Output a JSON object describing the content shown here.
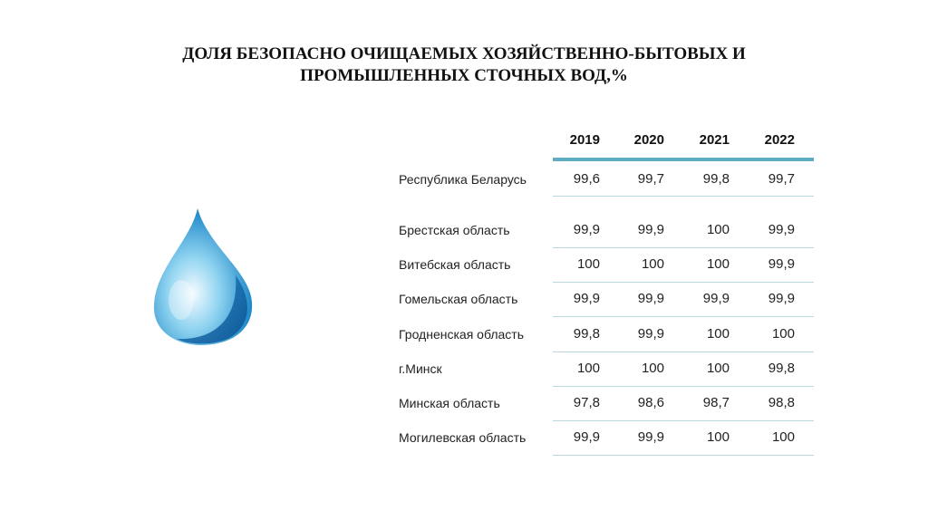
{
  "title": {
    "line1": "ДОЛЯ БЕЗОПАСНО ОЧИЩАЕМЫХ ХОЗЯЙСТВЕННО-БЫТОВЫХ И",
    "line2": "ПРОМЫШЛЕННЫХ СТОЧНЫХ ВОД,%"
  },
  "image": "water-drop",
  "table": {
    "columns": [
      "2019",
      "2020",
      "2021",
      "2022"
    ],
    "rows": [
      {
        "label": "Республика Беларусь",
        "values": [
          "99,6",
          "99,7",
          "99,8",
          "99,7"
        ]
      },
      {
        "label": "Брестская область",
        "values": [
          "99,9",
          "99,9",
          "100",
          "99,9"
        ]
      },
      {
        "label": "Витебская область",
        "values": [
          "100",
          "100",
          "100",
          "99,9"
        ]
      },
      {
        "label": "Гомельская область",
        "values": [
          "99,9",
          "99,9",
          "99,9",
          "99,9"
        ]
      },
      {
        "label": "Гродненская область",
        "values": [
          "99,8",
          "99,9",
          "100",
          "100"
        ]
      },
      {
        "label": "г.Минск",
        "values": [
          "100",
          "100",
          "100",
          "99,8"
        ]
      },
      {
        "label": "Минская область",
        "values": [
          "97,8",
          "98,6",
          "98,7",
          "98,8"
        ]
      },
      {
        "label": "Могилевская область",
        "values": [
          "99,9",
          "99,9",
          "100",
          "100"
        ]
      }
    ]
  },
  "colors": {
    "header_line": "#5eadc0",
    "row_line": "#b9d9e0"
  }
}
